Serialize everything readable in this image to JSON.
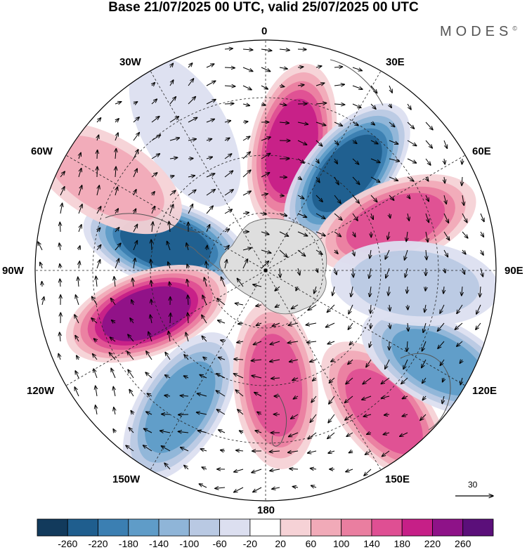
{
  "title": "Base 21/07/2025 00 UTC, valid 25/07/2025 00 UTC",
  "brand": "MODES",
  "brand_mark": "©",
  "longitude_labels": {
    "lon_0": "0",
    "lon_30e": "30E",
    "lon_60e": "60E",
    "lon_90e": "90E",
    "lon_120e": "120E",
    "lon_150e": "150E",
    "lon_180": "180",
    "lon_150w": "150W",
    "lon_120w": "120W",
    "lon_90w": "90W",
    "lon_60w": "60W",
    "lon_30w": "30W"
  },
  "vector_reference": "30",
  "colorbar": {
    "ticks": [
      "-260",
      "-220",
      "-180",
      "-140",
      "-100",
      "-60",
      "-20",
      "20",
      "60",
      "100",
      "140",
      "180",
      "220",
      "260"
    ],
    "colors": [
      "#123a5c",
      "#1f5e8e",
      "#3b7fb2",
      "#5f9cc8",
      "#8fb5d8",
      "#b9c9e3",
      "#dcdff0",
      "#ffffff",
      "#f6d2d6",
      "#f1aab8",
      "#ea7ea0",
      "#df4f93",
      "#c61f87",
      "#8e1288",
      "#5b0f7a"
    ]
  },
  "palette": {
    "land": "#dedede",
    "graticule": "#222222",
    "coast": "#555555"
  },
  "anomaly_centers": [
    {
      "lon": 12,
      "lat_frac": 0.55,
      "value": 200
    },
    {
      "lon": 40,
      "lat_frac": 0.55,
      "value": -230
    },
    {
      "lon": 70,
      "lat_frac": 0.6,
      "value": 150
    },
    {
      "lon": -75,
      "lat_frac": 0.45,
      "value": -230
    },
    {
      "lon": -110,
      "lat_frac": 0.55,
      "value": 220
    },
    {
      "lon": -148,
      "lat_frac": 0.7,
      "value": -160
    },
    {
      "lon": 175,
      "lat_frac": 0.5,
      "value": 170
    },
    {
      "lon": 140,
      "lat_frac": 0.8,
      "value": 140
    },
    {
      "lon": 118,
      "lat_frac": 0.85,
      "value": -150
    },
    {
      "lon": 95,
      "lat_frac": 0.65,
      "value": -60
    },
    {
      "lon": -30,
      "lat_frac": 0.7,
      "value": -40
    },
    {
      "lon": -60,
      "lat_frac": 0.8,
      "value": 60
    }
  ]
}
